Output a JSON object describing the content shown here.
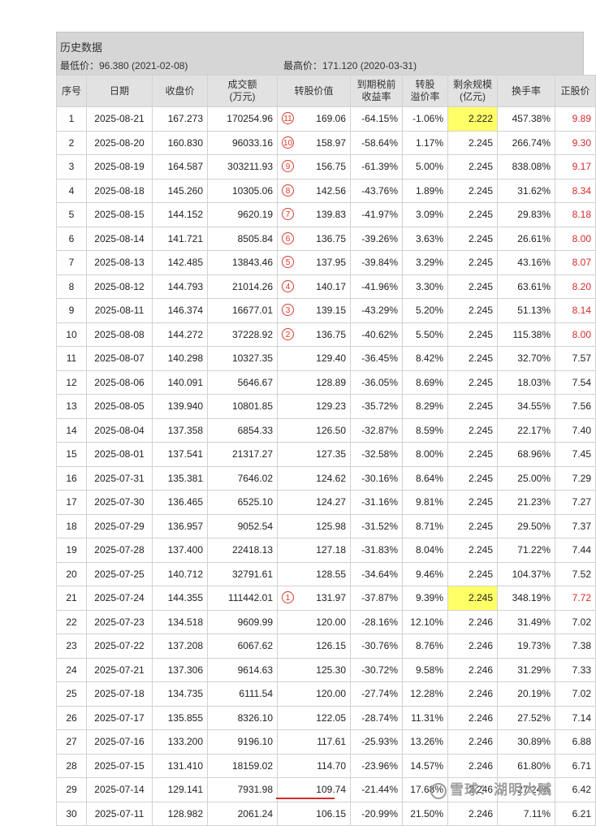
{
  "header": {
    "title": "历史数据",
    "low_label": "最低价：96.380 (2021-02-08)",
    "high_label": "最高价：171.120 (2020-03-31)"
  },
  "columns": [
    {
      "key": "idx",
      "label": "序号"
    },
    {
      "key": "date",
      "label": "日期"
    },
    {
      "key": "close",
      "label": "收盘价"
    },
    {
      "key": "volume",
      "label": "成交额\n(万元)"
    },
    {
      "key": "conv_value",
      "label": "转股价值"
    },
    {
      "key": "ytm",
      "label": "到期税前\n收益率"
    },
    {
      "key": "premium",
      "label": "转股\n溢价率"
    },
    {
      "key": "remaining",
      "label": "剩余规模\n(亿元)"
    },
    {
      "key": "turnover",
      "label": "换手率"
    },
    {
      "key": "stock_price",
      "label": "正股价"
    }
  ],
  "rows": [
    {
      "idx": "1",
      "date": "2025-08-21",
      "close": "167.273",
      "volume": "170254.96",
      "mark": "11",
      "conv_value": "169.06",
      "ytm": "-64.15%",
      "premium": "-1.06%",
      "remaining": "2.222",
      "remaining_hl": true,
      "turnover": "457.38%",
      "stock_price": "9.89",
      "stock_red": true
    },
    {
      "idx": "2",
      "date": "2025-08-20",
      "close": "160.830",
      "volume": "96033.16",
      "mark": "10",
      "conv_value": "158.97",
      "ytm": "-58.64%",
      "premium": "1.17%",
      "remaining": "2.245",
      "remaining_hl": false,
      "turnover": "266.74%",
      "stock_price": "9.30",
      "stock_red": true
    },
    {
      "idx": "3",
      "date": "2025-08-19",
      "close": "164.587",
      "volume": "303211.93",
      "mark": "9",
      "conv_value": "156.75",
      "ytm": "-61.39%",
      "premium": "5.00%",
      "remaining": "2.245",
      "remaining_hl": false,
      "turnover": "838.08%",
      "stock_price": "9.17",
      "stock_red": true
    },
    {
      "idx": "4",
      "date": "2025-08-18",
      "close": "145.260",
      "volume": "10305.06",
      "mark": "8",
      "conv_value": "142.56",
      "ytm": "-43.76%",
      "premium": "1.89%",
      "remaining": "2.245",
      "remaining_hl": false,
      "turnover": "31.62%",
      "stock_price": "8.34",
      "stock_red": true
    },
    {
      "idx": "5",
      "date": "2025-08-15",
      "close": "144.152",
      "volume": "9620.19",
      "mark": "7",
      "conv_value": "139.83",
      "ytm": "-41.97%",
      "premium": "3.09%",
      "remaining": "2.245",
      "remaining_hl": false,
      "turnover": "29.83%",
      "stock_price": "8.18",
      "stock_red": true
    },
    {
      "idx": "6",
      "date": "2025-08-14",
      "close": "141.721",
      "volume": "8505.84",
      "mark": "6",
      "conv_value": "136.75",
      "ytm": "-39.26%",
      "premium": "3.63%",
      "remaining": "2.245",
      "remaining_hl": false,
      "turnover": "26.61%",
      "stock_price": "8.00",
      "stock_red": true
    },
    {
      "idx": "7",
      "date": "2025-08-13",
      "close": "142.485",
      "volume": "13843.46",
      "mark": "5",
      "conv_value": "137.95",
      "ytm": "-39.84%",
      "premium": "3.29%",
      "remaining": "2.245",
      "remaining_hl": false,
      "turnover": "43.16%",
      "stock_price": "8.07",
      "stock_red": true
    },
    {
      "idx": "8",
      "date": "2025-08-12",
      "close": "144.793",
      "volume": "21014.26",
      "mark": "4",
      "conv_value": "140.17",
      "ytm": "-41.96%",
      "premium": "3.30%",
      "remaining": "2.245",
      "remaining_hl": false,
      "turnover": "63.61%",
      "stock_price": "8.20",
      "stock_red": true
    },
    {
      "idx": "9",
      "date": "2025-08-11",
      "close": "146.374",
      "volume": "16677.01",
      "mark": "3",
      "conv_value": "139.15",
      "ytm": "-43.29%",
      "premium": "5.20%",
      "remaining": "2.245",
      "remaining_hl": false,
      "turnover": "51.13%",
      "stock_price": "8.14",
      "stock_red": true
    },
    {
      "idx": "10",
      "date": "2025-08-08",
      "close": "144.272",
      "volume": "37228.92",
      "mark": "2",
      "conv_value": "136.75",
      "ytm": "-40.62%",
      "premium": "5.50%",
      "remaining": "2.245",
      "remaining_hl": false,
      "turnover": "115.38%",
      "stock_price": "8.00",
      "stock_red": true
    },
    {
      "idx": "11",
      "date": "2025-08-07",
      "close": "140.298",
      "volume": "10327.35",
      "mark": "",
      "conv_value": "129.40",
      "ytm": "-36.45%",
      "premium": "8.42%",
      "remaining": "2.245",
      "remaining_hl": false,
      "turnover": "32.70%",
      "stock_price": "7.57",
      "stock_red": false
    },
    {
      "idx": "12",
      "date": "2025-08-06",
      "close": "140.091",
      "volume": "5646.67",
      "mark": "",
      "conv_value": "128.89",
      "ytm": "-36.05%",
      "premium": "8.69%",
      "remaining": "2.245",
      "remaining_hl": false,
      "turnover": "18.03%",
      "stock_price": "7.54",
      "stock_red": false
    },
    {
      "idx": "13",
      "date": "2025-08-05",
      "close": "139.940",
      "volume": "10801.85",
      "mark": "",
      "conv_value": "129.23",
      "ytm": "-35.72%",
      "premium": "8.29%",
      "remaining": "2.245",
      "remaining_hl": false,
      "turnover": "34.55%",
      "stock_price": "7.56",
      "stock_red": false
    },
    {
      "idx": "14",
      "date": "2025-08-04",
      "close": "137.358",
      "volume": "6854.33",
      "mark": "",
      "conv_value": "126.50",
      "ytm": "-32.87%",
      "premium": "8.59%",
      "remaining": "2.245",
      "remaining_hl": false,
      "turnover": "22.17%",
      "stock_price": "7.40",
      "stock_red": false
    },
    {
      "idx": "15",
      "date": "2025-08-01",
      "close": "137.541",
      "volume": "21317.27",
      "mark": "",
      "conv_value": "127.35",
      "ytm": "-32.58%",
      "premium": "8.00%",
      "remaining": "2.245",
      "remaining_hl": false,
      "turnover": "68.96%",
      "stock_price": "7.45",
      "stock_red": false
    },
    {
      "idx": "16",
      "date": "2025-07-31",
      "close": "135.381",
      "volume": "7646.02",
      "mark": "",
      "conv_value": "124.62",
      "ytm": "-30.16%",
      "premium": "8.64%",
      "remaining": "2.245",
      "remaining_hl": false,
      "turnover": "25.00%",
      "stock_price": "7.29",
      "stock_red": false
    },
    {
      "idx": "17",
      "date": "2025-07-30",
      "close": "136.465",
      "volume": "6525.10",
      "mark": "",
      "conv_value": "124.27",
      "ytm": "-31.16%",
      "premium": "9.81%",
      "remaining": "2.245",
      "remaining_hl": false,
      "turnover": "21.23%",
      "stock_price": "7.27",
      "stock_red": false
    },
    {
      "idx": "18",
      "date": "2025-07-29",
      "close": "136.957",
      "volume": "9052.54",
      "mark": "",
      "conv_value": "125.98",
      "ytm": "-31.52%",
      "premium": "8.71%",
      "remaining": "2.245",
      "remaining_hl": false,
      "turnover": "29.50%",
      "stock_price": "7.37",
      "stock_red": false
    },
    {
      "idx": "19",
      "date": "2025-07-28",
      "close": "137.400",
      "volume": "22418.13",
      "mark": "",
      "conv_value": "127.18",
      "ytm": "-31.83%",
      "premium": "8.04%",
      "remaining": "2.245",
      "remaining_hl": false,
      "turnover": "71.22%",
      "stock_price": "7.44",
      "stock_red": false
    },
    {
      "idx": "20",
      "date": "2025-07-25",
      "close": "140.712",
      "volume": "32791.61",
      "mark": "",
      "conv_value": "128.55",
      "ytm": "-34.64%",
      "premium": "9.46%",
      "remaining": "2.245",
      "remaining_hl": false,
      "turnover": "104.37%",
      "stock_price": "7.52",
      "stock_red": false
    },
    {
      "idx": "21",
      "date": "2025-07-24",
      "close": "144.355",
      "volume": "111442.01",
      "mark": "1",
      "conv_value": "131.97",
      "ytm": "-37.87%",
      "premium": "9.39%",
      "remaining": "2.245",
      "remaining_hl": true,
      "turnover": "348.19%",
      "stock_price": "7.72",
      "stock_red": true
    },
    {
      "idx": "22",
      "date": "2025-07-23",
      "close": "134.518",
      "volume": "9609.99",
      "mark": "",
      "conv_value": "120.00",
      "ytm": "-28.16%",
      "premium": "12.10%",
      "remaining": "2.246",
      "remaining_hl": false,
      "turnover": "31.49%",
      "stock_price": "7.02",
      "stock_red": false
    },
    {
      "idx": "23",
      "date": "2025-07-22",
      "close": "137.208",
      "volume": "6067.62",
      "mark": "",
      "conv_value": "126.15",
      "ytm": "-30.76%",
      "premium": "8.76%",
      "remaining": "2.246",
      "remaining_hl": false,
      "turnover": "19.73%",
      "stock_price": "7.38",
      "stock_red": false
    },
    {
      "idx": "24",
      "date": "2025-07-21",
      "close": "137.306",
      "volume": "9614.63",
      "mark": "",
      "conv_value": "125.30",
      "ytm": "-30.72%",
      "premium": "9.58%",
      "remaining": "2.246",
      "remaining_hl": false,
      "turnover": "31.29%",
      "stock_price": "7.33",
      "stock_red": false
    },
    {
      "idx": "25",
      "date": "2025-07-18",
      "close": "134.735",
      "volume": "6111.54",
      "mark": "",
      "conv_value": "120.00",
      "ytm": "-27.74%",
      "premium": "12.28%",
      "remaining": "2.246",
      "remaining_hl": false,
      "turnover": "20.19%",
      "stock_price": "7.02",
      "stock_red": false
    },
    {
      "idx": "26",
      "date": "2025-07-17",
      "close": "135.855",
      "volume": "8326.10",
      "mark": "",
      "conv_value": "122.05",
      "ytm": "-28.74%",
      "premium": "11.31%",
      "remaining": "2.246",
      "remaining_hl": false,
      "turnover": "27.52%",
      "stock_price": "7.14",
      "stock_red": false
    },
    {
      "idx": "27",
      "date": "2025-07-16",
      "close": "133.200",
      "volume": "9196.10",
      "mark": "",
      "conv_value": "117.61",
      "ytm": "-25.93%",
      "premium": "13.26%",
      "remaining": "2.246",
      "remaining_hl": false,
      "turnover": "30.89%",
      "stock_price": "6.88",
      "stock_red": false
    },
    {
      "idx": "28",
      "date": "2025-07-15",
      "close": "131.410",
      "volume": "18159.02",
      "mark": "",
      "conv_value": "114.70",
      "ytm": "-23.96%",
      "premium": "14.57%",
      "remaining": "2.246",
      "remaining_hl": false,
      "turnover": "61.80%",
      "stock_price": "6.71",
      "stock_red": false
    },
    {
      "idx": "29",
      "date": "2025-07-14",
      "close": "129.141",
      "volume": "7931.98",
      "mark": "",
      "conv_value": "109.74",
      "ytm": "-21.44%",
      "premium": "17.68%",
      "remaining": "2.246",
      "remaining_hl": false,
      "turnover": "27.24%",
      "stock_price": "6.42",
      "stock_red": false
    },
    {
      "idx": "30",
      "date": "2025-07-11",
      "close": "128.982",
      "volume": "2061.24",
      "mark": "",
      "conv_value": "106.15",
      "ytm": "-20.99%",
      "premium": "21.50%",
      "remaining": "2.246",
      "remaining_hl": false,
      "turnover": "7.11%",
      "stock_price": "6.21",
      "stock_red": false
    }
  ],
  "watermark": "雪球：湖明大赋"
}
